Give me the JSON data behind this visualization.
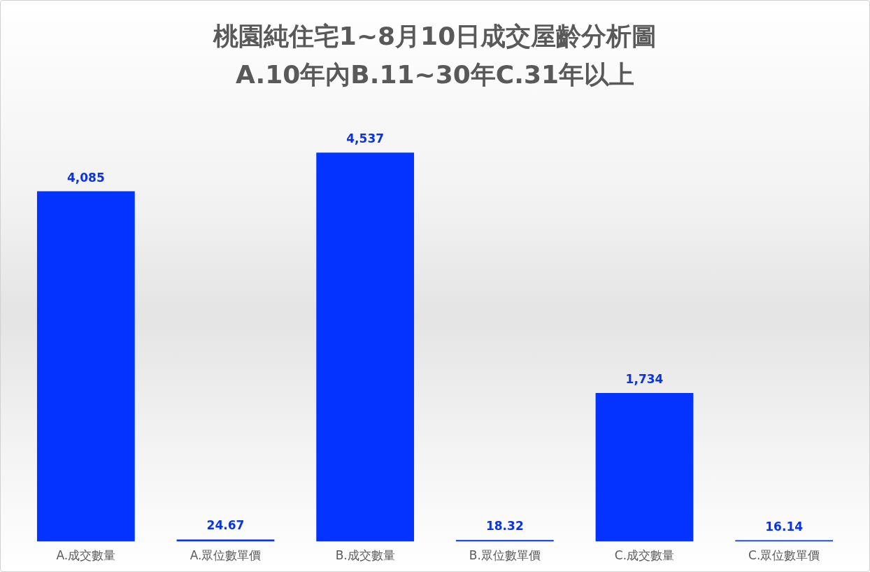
{
  "chart_data": {
    "type": "bar",
    "title": "桃園純住宅1~8月10日成交屋齡分析圖",
    "subtitle": "A.10年內B.11~30年C.31年以上",
    "categories": [
      "A.成交數量",
      "A.眾位數單價",
      "B.成交數量",
      "B.眾位數單價",
      "C.成交數量",
      "C.眾位數單價"
    ],
    "values": [
      4085,
      24.67,
      4537,
      18.32,
      1734,
      16.14
    ],
    "color": "#0433ff",
    "value_labels": [
      "4,085",
      "24.67",
      "4,537",
      "18.32",
      "1,734",
      "16.14"
    ]
  }
}
